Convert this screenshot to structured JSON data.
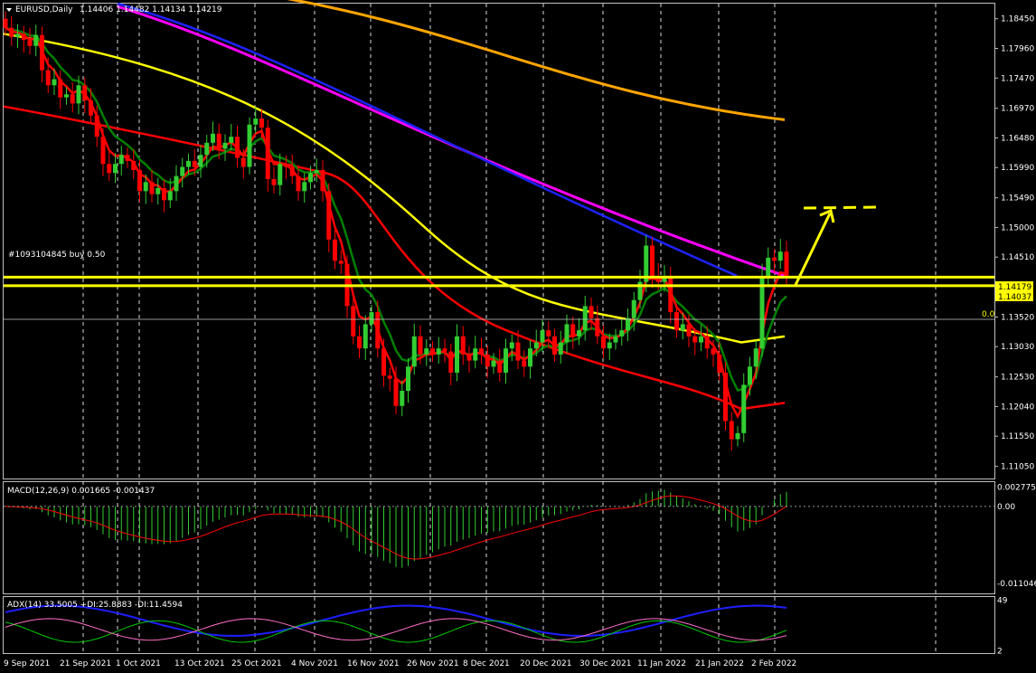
{
  "header": {
    "symbol": "EURUSD,Daily",
    "ohlc": "1.14406 1.14482 1.14134 1.14219"
  },
  "order_label": "#1093104845 buy 0.50",
  "fib_label": "0.0",
  "macd_header": "MACD(12,26,9) 0.001665 -0.001437",
  "adx_header": "ADX(14) 33.5005 +DI:25.8883 -DI:11.4594",
  "colors": {
    "background": "#000000",
    "bull": "#32cd32",
    "bear": "#ff0000",
    "ema_fast": "#008000",
    "ema_slow": "#ff0000",
    "sma_200": "#ffff00",
    "ma_blue": "#1e22ff",
    "ma_magenta": "#ff00ff",
    "ma_orange": "#ffa500",
    "level_line": "#ffff00",
    "arrow": "#ffff00",
    "adx": "#1e1eff",
    "plus_di": "#00c800",
    "minus_di": "#ff6ec8"
  },
  "chart_data": [
    {
      "type": "candlestick",
      "symbol": "EURUSD",
      "timeframe": "Daily",
      "x_labels": [
        "9 Sep 2021",
        "21 Sep 2021",
        "1 Oct 2021",
        "13 Oct 2021",
        "25 Oct 2021",
        "4 Nov 2021",
        "16 Nov 2021",
        "26 Nov 2021",
        "8 Dec 2021",
        "20 Dec 2021",
        "30 Dec 2021",
        "11 Jan 2022",
        "21 Jan 2022",
        "2 Feb 2022"
      ],
      "y_ticks": [
        "1.18450",
        "1.17960",
        "1.17470",
        "1.16970",
        "1.16480",
        "1.15990",
        "1.15490",
        "1.15000",
        "1.14510",
        "1.13520",
        "1.13030",
        "1.12530",
        "1.12040",
        "1.11550",
        "1.11050"
      ],
      "ylim": [
        1.1085,
        1.187
      ],
      "price_labels": [
        "1.14179",
        "1.14037"
      ],
      "levels": [
        1.14179,
        1.14037
      ],
      "closes": [
        1.183,
        1.1815,
        1.182,
        1.181,
        1.18,
        1.1818,
        1.176,
        1.1735,
        1.1745,
        1.1715,
        1.172,
        1.1705,
        1.1735,
        1.171,
        1.1685,
        1.165,
        1.1605,
        1.159,
        1.1605,
        1.162,
        1.161,
        1.1595,
        1.156,
        1.1575,
        1.1555,
        1.1565,
        1.1545,
        1.156,
        1.1585,
        1.16,
        1.161,
        1.16,
        1.162,
        1.164,
        1.1655,
        1.163,
        1.164,
        1.165,
        1.1615,
        1.16,
        1.167,
        1.168,
        1.1665,
        1.158,
        1.157,
        1.1605,
        1.16,
        1.1585,
        1.156,
        1.1575,
        1.159,
        1.1595,
        1.156,
        1.148,
        1.1445,
        1.144,
        1.137,
        1.132,
        1.13,
        1.134,
        1.136,
        1.13,
        1.1255,
        1.125,
        1.1205,
        1.123,
        1.127,
        1.132,
        1.129,
        1.13,
        1.129,
        1.13,
        1.1295,
        1.126,
        1.132,
        1.129,
        1.128,
        1.13,
        1.129,
        1.127,
        1.128,
        1.126,
        1.13,
        1.131,
        1.128,
        1.127,
        1.13,
        1.131,
        1.133,
        1.132,
        1.129,
        1.131,
        1.134,
        1.132,
        1.133,
        1.137,
        1.135,
        1.132,
        1.13,
        1.131,
        1.132,
        1.133,
        1.135,
        1.138,
        1.141,
        1.147,
        1.142,
        1.141,
        1.142,
        1.136,
        1.133,
        1.134,
        1.132,
        1.131,
        1.132,
        1.13,
        1.129,
        1.126,
        1.118,
        1.115,
        1.116,
        1.124,
        1.127,
        1.13,
        1.142,
        1.145,
        1.1445,
        1.146,
        1.142
      ],
      "sma_200_values": "overlay"
    },
    {
      "type": "bar",
      "name": "MACD(12,26,9)",
      "values_label": "0.001665 -0.001437",
      "y_ticks": [
        "0.002775",
        "0.00",
        "-0.011046"
      ],
      "ylim": [
        -0.0125,
        0.0035
      ]
    },
    {
      "type": "line",
      "name": "ADX(14)",
      "values_label": "33.5005 +DI:25.8883 -DI:11.4594",
      "y_ticks": [
        "49",
        "2"
      ],
      "ylim": [
        0,
        52
      ]
    }
  ]
}
